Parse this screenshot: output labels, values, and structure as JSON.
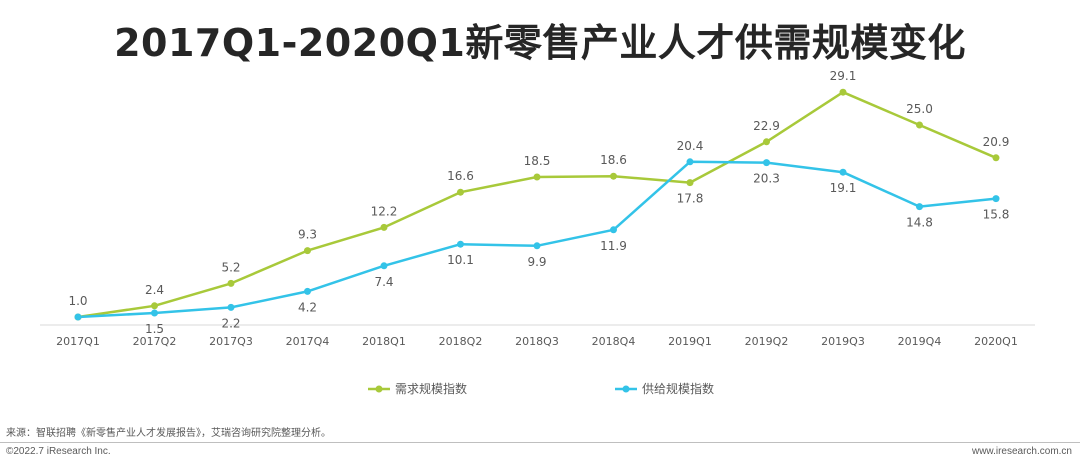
{
  "colors": {
    "demand": "#a8c93a",
    "supply": "#33c3e8",
    "axis": "#d9d9d9",
    "text": "#595959"
  },
  "chart_data": {
    "type": "line",
    "title": "2017Q1-2020Q1新零售产业人才供需规模变化",
    "categories": [
      "2017Q1",
      "2017Q2",
      "2017Q3",
      "2017Q4",
      "2018Q1",
      "2018Q2",
      "2018Q3",
      "2018Q4",
      "2019Q1",
      "2019Q2",
      "2019Q3",
      "2019Q4",
      "2020Q1"
    ],
    "series": [
      {
        "name": "需求规模指数",
        "key": "demand",
        "values": [
          1.0,
          2.4,
          5.2,
          9.3,
          12.2,
          16.6,
          18.5,
          18.6,
          17.8,
          22.9,
          29.1,
          25.0,
          20.9
        ]
      },
      {
        "name": "供给规模指数",
        "key": "supply",
        "values": [
          1.0,
          1.5,
          2.2,
          4.2,
          7.4,
          10.1,
          9.9,
          11.9,
          20.4,
          20.3,
          19.1,
          14.8,
          15.8
        ]
      }
    ],
    "xlabel": "",
    "ylabel": "",
    "ylim": [
      0,
      30
    ],
    "grid": false,
    "legend": "bottom"
  },
  "footer": {
    "source": "来源：智联招聘《新零售产业人才发展报告》，艾瑞咨询研究院整理分析。",
    "copyright": "©2022.7 iResearch Inc.",
    "website": "www.iresearch.com.cn"
  }
}
